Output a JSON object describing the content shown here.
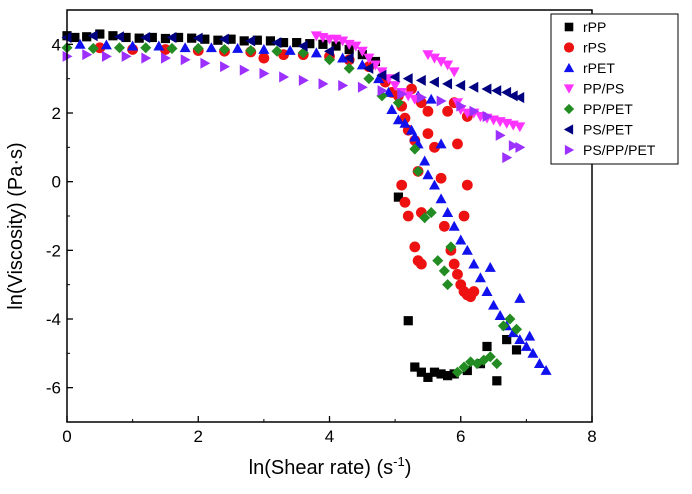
{
  "chart_data": {
    "type": "scatter",
    "xlabel": "ln(Shear rate) (s",
    "xlabel_sup": "-1",
    "xlabel_tail": ")",
    "ylabel": "ln(Viscosity) (Pa·s)",
    "xlim": [
      0,
      8
    ],
    "ylim": [
      -7,
      5
    ],
    "xticks": [
      0,
      2,
      4,
      6,
      8
    ],
    "xtick_labels": [
      "0",
      "2",
      "4",
      "6",
      "8"
    ],
    "yticks": [
      -6,
      -4,
      -2,
      0,
      2,
      4
    ],
    "ytick_labels": [
      "-6",
      "-4",
      "-2",
      "0",
      "2",
      "4"
    ],
    "grid": false,
    "legend_position": "top-right",
    "series": [
      {
        "name": "rPP",
        "color": "#000000",
        "marker": "square",
        "points": [
          [
            0.0,
            4.25
          ],
          [
            0.12,
            4.2
          ],
          [
            0.3,
            4.22
          ],
          [
            0.5,
            4.3
          ],
          [
            0.7,
            4.25
          ],
          [
            0.9,
            4.2
          ],
          [
            1.1,
            4.18
          ],
          [
            1.3,
            4.2
          ],
          [
            1.5,
            4.17
          ],
          [
            1.7,
            4.2
          ],
          [
            1.9,
            4.18
          ],
          [
            2.1,
            4.15
          ],
          [
            2.3,
            4.12
          ],
          [
            2.5,
            4.15
          ],
          [
            2.7,
            4.1
          ],
          [
            2.9,
            4.12
          ],
          [
            3.1,
            4.1
          ],
          [
            3.3,
            4.05
          ],
          [
            3.5,
            4.05
          ],
          [
            3.7,
            4.02
          ],
          [
            3.9,
            4.0
          ],
          [
            4.1,
            3.95
          ],
          [
            4.3,
            3.85
          ],
          [
            4.5,
            3.7
          ],
          [
            4.7,
            3.5
          ],
          [
            5.05,
            -0.45
          ],
          [
            5.2,
            -4.05
          ],
          [
            5.3,
            -5.4
          ],
          [
            5.4,
            -5.55
          ],
          [
            5.5,
            -5.7
          ],
          [
            5.6,
            -5.55
          ],
          [
            5.7,
            -5.6
          ],
          [
            5.8,
            -5.65
          ],
          [
            5.9,
            -5.6
          ],
          [
            6.1,
            -5.5
          ],
          [
            6.3,
            -5.3
          ],
          [
            6.4,
            -4.8
          ],
          [
            6.55,
            -5.8
          ],
          [
            6.7,
            -4.6
          ],
          [
            6.85,
            -4.9
          ]
        ]
      },
      {
        "name": "rPS",
        "color": "#ee1111",
        "marker": "circle",
        "points": [
          [
            0.5,
            3.9
          ],
          [
            1.0,
            3.85
          ],
          [
            1.5,
            3.85
          ],
          [
            2.0,
            3.82
          ],
          [
            2.4,
            3.8
          ],
          [
            2.8,
            3.78
          ],
          [
            3.0,
            3.6
          ],
          [
            3.3,
            3.7
          ],
          [
            3.6,
            3.7
          ],
          [
            4.0,
            3.65
          ],
          [
            4.3,
            3.55
          ],
          [
            4.6,
            3.35
          ],
          [
            4.85,
            2.9
          ],
          [
            4.95,
            2.6
          ],
          [
            5.05,
            2.5
          ],
          [
            5.1,
            2.2
          ],
          [
            5.15,
            1.85
          ],
          [
            5.2,
            1.5
          ],
          [
            5.25,
            2.7
          ],
          [
            5.3,
            1.2
          ],
          [
            5.35,
            0.3
          ],
          [
            5.1,
            -0.1
          ],
          [
            5.15,
            -0.6
          ],
          [
            5.2,
            -1.0
          ],
          [
            5.3,
            -1.9
          ],
          [
            5.35,
            -2.3
          ],
          [
            5.4,
            -2.4
          ],
          [
            5.4,
            -0.9
          ],
          [
            5.5,
            1.4
          ],
          [
            5.6,
            1.0
          ],
          [
            5.7,
            0.1
          ],
          [
            5.75,
            -1.3
          ],
          [
            5.85,
            -2.0
          ],
          [
            5.9,
            -2.4
          ],
          [
            5.95,
            -2.7
          ],
          [
            6.0,
            -3.0
          ],
          [
            6.05,
            -3.2
          ],
          [
            6.1,
            -3.3
          ],
          [
            6.15,
            -3.35
          ],
          [
            6.2,
            -3.2
          ],
          [
            6.05,
            -1.0
          ],
          [
            6.1,
            -0.1
          ],
          [
            5.95,
            1.1
          ],
          [
            6.1,
            1.9
          ],
          [
            5.9,
            2.3
          ],
          [
            5.8,
            2.05
          ],
          [
            5.5,
            2.05
          ],
          [
            5.4,
            2.3
          ]
        ]
      },
      {
        "name": "rPET",
        "color": "#1111ee",
        "marker": "triangle-up",
        "points": [
          [
            0.2,
            4.0
          ],
          [
            0.6,
            3.98
          ],
          [
            1.0,
            3.95
          ],
          [
            1.4,
            3.95
          ],
          [
            1.8,
            3.9
          ],
          [
            2.2,
            3.9
          ],
          [
            2.6,
            3.88
          ],
          [
            3.0,
            3.85
          ],
          [
            3.4,
            3.82
          ],
          [
            3.8,
            3.75
          ],
          [
            4.2,
            3.6
          ],
          [
            4.5,
            3.4
          ],
          [
            4.75,
            3.0
          ],
          [
            4.9,
            2.6
          ],
          [
            4.95,
            2.1
          ],
          [
            5.05,
            1.8
          ],
          [
            5.15,
            1.7
          ],
          [
            5.25,
            1.5
          ],
          [
            5.35,
            1.1
          ],
          [
            5.45,
            0.6
          ],
          [
            5.5,
            0.2
          ],
          [
            5.6,
            -0.1
          ],
          [
            5.7,
            -0.5
          ],
          [
            5.8,
            -0.9
          ],
          [
            5.9,
            -1.3
          ],
          [
            6.0,
            -1.7
          ],
          [
            6.1,
            -2.0
          ],
          [
            6.2,
            -2.4
          ],
          [
            6.3,
            -2.8
          ],
          [
            6.4,
            -3.2
          ],
          [
            6.5,
            -3.6
          ],
          [
            6.6,
            -3.9
          ],
          [
            6.7,
            -4.2
          ],
          [
            6.8,
            -4.4
          ],
          [
            6.9,
            -4.6
          ],
          [
            7.0,
            -4.8
          ],
          [
            7.1,
            -5.0
          ],
          [
            7.2,
            -5.3
          ],
          [
            7.3,
            -5.5
          ],
          [
            7.05,
            -4.5
          ],
          [
            6.9,
            -3.4
          ],
          [
            6.45,
            -2.5
          ],
          [
            5.7,
            1.1
          ],
          [
            5.3,
            1.3
          ],
          [
            5.55,
            2.4
          ],
          [
            5.35,
            2.5
          ]
        ]
      },
      {
        "name": "PP/PS",
        "color": "#ff33ff",
        "marker": "triangle-down",
        "points": [
          [
            3.8,
            4.25
          ],
          [
            3.9,
            4.2
          ],
          [
            4.0,
            4.15
          ],
          [
            4.1,
            4.15
          ],
          [
            4.2,
            4.1
          ],
          [
            4.3,
            4.0
          ],
          [
            4.4,
            3.95
          ],
          [
            4.5,
            3.8
          ],
          [
            4.6,
            3.6
          ],
          [
            4.7,
            3.4
          ],
          [
            4.8,
            3.2
          ],
          [
            4.9,
            3.0
          ],
          [
            5.0,
            2.8
          ],
          [
            5.1,
            2.6
          ],
          [
            5.2,
            2.5
          ],
          [
            5.3,
            2.4
          ],
          [
            5.5,
            3.7
          ],
          [
            5.6,
            3.6
          ],
          [
            5.7,
            3.5
          ],
          [
            5.8,
            3.4
          ],
          [
            5.9,
            3.2
          ],
          [
            5.95,
            2.3
          ],
          [
            6.0,
            2.1
          ],
          [
            6.1,
            2.0
          ],
          [
            6.2,
            2.0
          ],
          [
            6.3,
            1.9
          ],
          [
            6.4,
            1.85
          ],
          [
            6.5,
            1.8
          ],
          [
            6.6,
            1.75
          ],
          [
            6.7,
            1.7
          ],
          [
            6.8,
            1.65
          ],
          [
            6.9,
            1.6
          ]
        ]
      },
      {
        "name": "PP/PET",
        "color": "#228b22",
        "marker": "diamond",
        "points": [
          [
            0.0,
            3.9
          ],
          [
            0.4,
            3.88
          ],
          [
            0.8,
            3.9
          ],
          [
            1.2,
            3.9
          ],
          [
            1.6,
            3.88
          ],
          [
            2.0,
            3.88
          ],
          [
            2.4,
            3.85
          ],
          [
            2.8,
            3.82
          ],
          [
            3.2,
            3.8
          ],
          [
            3.6,
            3.75
          ],
          [
            4.0,
            3.55
          ],
          [
            4.3,
            3.3
          ],
          [
            4.6,
            3.0
          ],
          [
            4.8,
            2.5
          ],
          [
            5.05,
            2.3
          ],
          [
            5.3,
            0.95
          ],
          [
            5.35,
            0.3
          ],
          [
            5.45,
            -1.05
          ],
          [
            5.55,
            -0.9
          ],
          [
            5.65,
            -2.3
          ],
          [
            5.75,
            -2.6
          ],
          [
            5.8,
            -3.0
          ],
          [
            5.85,
            -1.9
          ],
          [
            5.95,
            -5.55
          ],
          [
            6.05,
            -5.4
          ],
          [
            6.15,
            -5.25
          ],
          [
            6.25,
            -5.3
          ],
          [
            6.35,
            -5.2
          ],
          [
            6.45,
            -5.1
          ],
          [
            6.55,
            -5.3
          ],
          [
            6.65,
            -4.2
          ],
          [
            6.75,
            -4.0
          ],
          [
            6.85,
            -4.3
          ]
        ]
      },
      {
        "name": "PS/PET",
        "color": "#000080",
        "marker": "triangle-left",
        "points": [
          [
            0.0,
            4.2
          ],
          [
            0.4,
            4.25
          ],
          [
            0.8,
            4.22
          ],
          [
            1.2,
            4.2
          ],
          [
            1.6,
            4.2
          ],
          [
            2.0,
            4.18
          ],
          [
            2.4,
            4.15
          ],
          [
            2.8,
            4.1
          ],
          [
            3.2,
            4.05
          ],
          [
            3.6,
            3.95
          ],
          [
            4.0,
            3.8
          ],
          [
            4.3,
            3.6
          ],
          [
            4.6,
            3.3
          ],
          [
            4.8,
            3.1
          ],
          [
            5.0,
            3.05
          ],
          [
            5.2,
            3.0
          ],
          [
            5.4,
            2.95
          ],
          [
            5.6,
            2.9
          ],
          [
            5.8,
            2.85
          ],
          [
            6.0,
            2.8
          ],
          [
            6.2,
            2.75
          ],
          [
            6.4,
            2.7
          ],
          [
            6.55,
            2.65
          ],
          [
            6.7,
            2.6
          ],
          [
            6.8,
            2.5
          ],
          [
            6.9,
            2.45
          ]
        ]
      },
      {
        "name": "PS/PP/PET",
        "color": "#9b30ff",
        "marker": "triangle-right",
        "points": [
          [
            0.0,
            3.65
          ],
          [
            0.3,
            3.7
          ],
          [
            0.6,
            3.65
          ],
          [
            0.9,
            3.65
          ],
          [
            1.2,
            3.6
          ],
          [
            1.5,
            3.6
          ],
          [
            1.8,
            3.55
          ],
          [
            2.1,
            3.45
          ],
          [
            2.4,
            3.35
          ],
          [
            2.7,
            3.25
          ],
          [
            3.0,
            3.15
          ],
          [
            3.3,
            3.05
          ],
          [
            3.6,
            2.95
          ],
          [
            3.9,
            2.85
          ],
          [
            4.2,
            2.8
          ],
          [
            4.5,
            2.75
          ],
          [
            4.8,
            2.65
          ],
          [
            5.1,
            2.55
          ],
          [
            5.4,
            2.45
          ],
          [
            5.7,
            2.35
          ],
          [
            6.0,
            2.2
          ],
          [
            6.2,
            2.05
          ],
          [
            6.4,
            1.9
          ],
          [
            6.6,
            1.35
          ],
          [
            6.7,
            0.7
          ],
          [
            6.8,
            1.05
          ],
          [
            6.9,
            1.0
          ]
        ]
      }
    ]
  }
}
